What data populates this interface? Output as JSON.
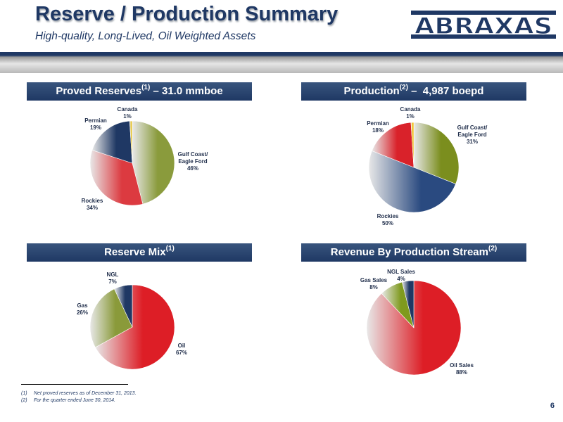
{
  "title": "Reserve / Production Summary",
  "subtitle": "High-quality, Long-Lived, Oil Weighted Assets",
  "logo_text": "ABRAXAS",
  "panels": {
    "proved_reserves": {
      "header_prefix": "Proved Reserves",
      "header_sup": "(1)",
      "header_suffix": " – 31.0 mmboe"
    },
    "production": {
      "header_prefix": "Production",
      "header_sup": "(2)",
      "header_suffix": " –  4,987 boepd"
    },
    "reserve_mix": {
      "header_prefix": "Reserve Mix",
      "header_sup": "(1)",
      "header_suffix": ""
    },
    "revenue": {
      "header_prefix": "Revenue By Production Stream",
      "header_sup": "(2)",
      "header_suffix": ""
    }
  },
  "chart_data": [
    {
      "type": "pie",
      "slices": [
        {
          "label": [
            "Gulf Coast/",
            "Eagle Ford"
          ],
          "pct": "46%",
          "value": 46,
          "color": "#8a9b3c"
        },
        {
          "label": [
            "Rockies"
          ],
          "pct": "34%",
          "value": 34,
          "color": "#dc3a40"
        },
        {
          "label": [
            "Permian"
          ],
          "pct": "19%",
          "value": 19,
          "color": "#1f3864"
        },
        {
          "label": [
            "Canada"
          ],
          "pct": "1%",
          "value": 1,
          "color": "#e6c63a"
        }
      ]
    },
    {
      "type": "pie",
      "slices": [
        {
          "label": [
            "Gulf Coast/",
            "Eagle Ford"
          ],
          "pct": "31%",
          "value": 31,
          "color": "#7b8e1e"
        },
        {
          "label": [
            "Rockies"
          ],
          "pct": "50%",
          "value": 50,
          "color": "#2a4a80"
        },
        {
          "label": [
            "Permian"
          ],
          "pct": "18%",
          "value": 18,
          "color": "#d9222a"
        },
        {
          "label": [
            "Canada"
          ],
          "pct": "1%",
          "value": 1,
          "color": "#f0c020"
        }
      ]
    },
    {
      "type": "pie",
      "slices": [
        {
          "label": [
            "Oil"
          ],
          "pct": "67%",
          "value": 67,
          "color": "#dd1e26"
        },
        {
          "label": [
            "Gas"
          ],
          "pct": "26%",
          "value": 26,
          "color": "#8a9a3a"
        },
        {
          "label": [
            "NGL"
          ],
          "pct": "7%",
          "value": 7,
          "color": "#1f3864"
        }
      ]
    },
    {
      "type": "pie",
      "slices": [
        {
          "label": [
            "Oil Sales"
          ],
          "pct": "88%",
          "value": 88,
          "color": "#dd1e26"
        },
        {
          "label": [
            "Gas Sales"
          ],
          "pct": "8%",
          "value": 8,
          "color": "#7f9a1e"
        },
        {
          "label": [
            "NGL Sales"
          ],
          "pct": "4%",
          "value": 4,
          "color": "#1f3864"
        }
      ]
    }
  ],
  "footnotes": [
    {
      "num": "(1)",
      "text": "Net proved reserves as of December 31, 2013."
    },
    {
      "num": "(2)",
      "text": "For the quarter ended June 30, 2014."
    }
  ],
  "page_number": "6"
}
